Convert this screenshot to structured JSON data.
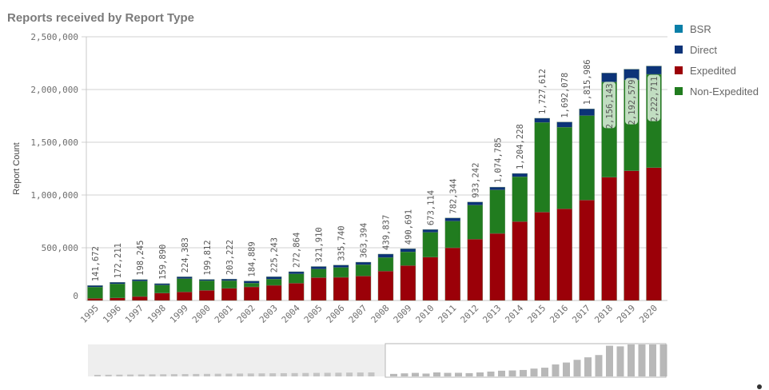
{
  "title": "Reports received by Report Type",
  "chart_data": {
    "type": "bar",
    "stacked": true,
    "title": "Reports received by Report Type",
    "xlabel": "",
    "ylabel": "Report Count",
    "ylim": [
      0,
      2500000
    ],
    "yticks": [
      0,
      500000,
      1000000,
      1500000,
      2000000,
      2500000
    ],
    "ytick_labels": [
      "0",
      "500,000",
      "1,000,000",
      "1,500,000",
      "2,000,000",
      "2,500,000"
    ],
    "grid": true,
    "legend_position": "right",
    "categories": [
      "1995",
      "1996",
      "1997",
      "1998",
      "1999",
      "2000",
      "2001",
      "2002",
      "2003",
      "2004",
      "2005",
      "2006",
      "2007",
      "2008",
      "2009",
      "2010",
      "2011",
      "2012",
      "2013",
      "2014",
      "2015",
      "2016",
      "2017",
      "2018",
      "2019",
      "2020"
    ],
    "series": [
      {
        "name": "Expedited",
        "color": "#9b0008",
        "values": [
          20000,
          25000,
          38000,
          71000,
          81000,
          96000,
          116000,
          129000,
          144000,
          164000,
          217000,
          220000,
          232000,
          278000,
          331000,
          411000,
          500000,
          581000,
          636000,
          748000,
          838000,
          869000,
          952000,
          1169000,
          1230000,
          1260000
        ]
      },
      {
        "name": "Non-Expedited",
        "color": "#217c1f",
        "values": [
          107000,
          132000,
          146000,
          75000,
          126000,
          91000,
          71000,
          35000,
          58000,
          88000,
          81000,
          93000,
          107000,
          129000,
          129000,
          235000,
          252000,
          323000,
          412000,
          424000,
          849000,
          773000,
          800000,
          902000,
          858000,
          884000
        ]
      },
      {
        "name": "Direct",
        "color": "#0c3378",
        "values": [
          14672,
          15211,
          14245,
          13890,
          17383,
          12812,
          16222,
          20889,
          23243,
          20864,
          23910,
          22740,
          24394,
          32837,
          30691,
          27114,
          30344,
          29242,
          26785,
          32228,
          40612,
          50078,
          63986,
          85143,
          104579,
          78711
        ]
      },
      {
        "name": "BSR",
        "color": "#0a7fa8",
        "values": [
          0,
          0,
          0,
          0,
          0,
          0,
          0,
          0,
          0,
          0,
          0,
          0,
          0,
          0,
          0,
          0,
          0,
          0,
          0,
          0,
          0,
          0,
          0,
          0,
          0,
          0
        ]
      }
    ],
    "totals": [
      141672,
      172211,
      198245,
      159890,
      224383,
      199812,
      203222,
      184889,
      225243,
      272864,
      321910,
      335740,
      363394,
      439837,
      490691,
      673114,
      782344,
      933242,
      1074785,
      1204228,
      1727612,
      1692078,
      1815986,
      2156143,
      2192579,
      2222711
    ],
    "total_labels": [
      "141,672",
      "172,211",
      "198,245",
      "159,890",
      "224,383",
      "199,812",
      "203,222",
      "184,889",
      "225,243",
      "272,864",
      "321,910",
      "335,740",
      "363,394",
      "439,837",
      "490,691",
      "673,114",
      "782,344",
      "933,242",
      "1,074,785",
      "1,204,228",
      "1,727,612",
      "1,692,078",
      "1,815,986",
      "2,156,143",
      "2,192,579",
      "2,222,711"
    ],
    "legend": [
      {
        "name": "BSR",
        "color": "#0a7fa8"
      },
      {
        "name": "Direct",
        "color": "#0c3378"
      },
      {
        "name": "Expedited",
        "color": "#9b0008"
      },
      {
        "name": "Non-Expedited",
        "color": "#217c1f"
      }
    ]
  }
}
